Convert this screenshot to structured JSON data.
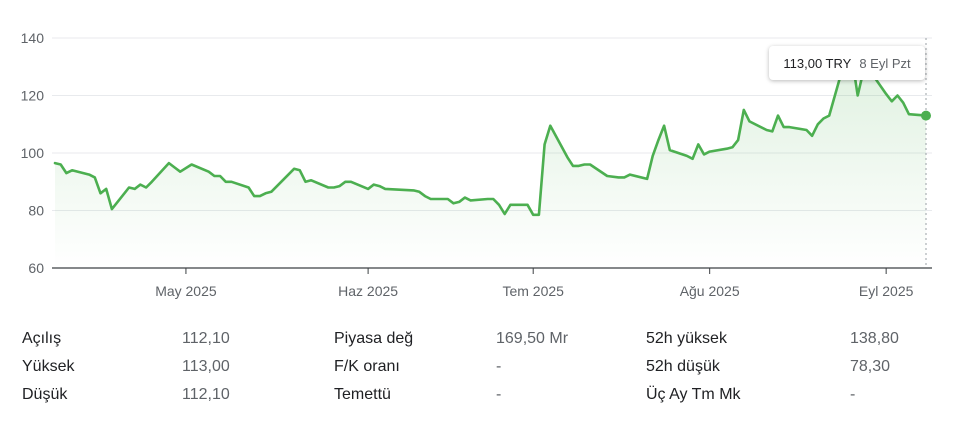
{
  "chart_data": {
    "type": "area",
    "ylim": [
      60,
      140
    ],
    "y_ticks": [
      60,
      80,
      100,
      120,
      140
    ],
    "x_tick_labels": [
      "May 2025",
      "Haz 2025",
      "Tem 2025",
      "Ağu 2025",
      "Eyl 2025"
    ],
    "x_tick_dates": [
      "2025-05-01",
      "2025-06-02",
      "2025-07-01",
      "2025-08-01",
      "2025-09-01"
    ],
    "grid": true,
    "line_color": "#4caf50",
    "fill_color": "#e8f5e9",
    "series": [
      {
        "x": [
          "2025-04-08",
          "2025-04-09",
          "2025-04-10",
          "2025-04-11",
          "2025-04-14",
          "2025-04-15",
          "2025-04-16",
          "2025-04-17",
          "2025-04-18",
          "2025-04-21",
          "2025-04-22",
          "2025-04-23",
          "2025-04-24",
          "2025-04-25",
          "2025-04-28",
          "2025-04-29",
          "2025-04-30",
          "2025-05-02",
          "2025-05-05",
          "2025-05-06",
          "2025-05-07",
          "2025-05-08",
          "2025-05-09",
          "2025-05-12",
          "2025-05-13",
          "2025-05-14",
          "2025-05-15",
          "2025-05-16",
          "2025-05-20",
          "2025-05-21",
          "2025-05-22",
          "2025-05-23",
          "2025-05-26",
          "2025-05-27",
          "2025-05-28",
          "2025-05-29",
          "2025-05-30",
          "2025-06-02",
          "2025-06-03",
          "2025-06-04",
          "2025-06-05",
          "2025-06-10",
          "2025-06-11",
          "2025-06-12",
          "2025-06-13",
          "2025-06-16",
          "2025-06-17",
          "2025-06-18",
          "2025-06-19",
          "2025-06-20",
          "2025-06-23",
          "2025-06-24",
          "2025-06-25",
          "2025-06-26",
          "2025-06-27",
          "2025-06-30",
          "2025-07-01",
          "2025-07-02",
          "2025-07-03",
          "2025-07-04",
          "2025-07-07",
          "2025-07-08",
          "2025-07-09",
          "2025-07-10",
          "2025-07-11",
          "2025-07-14",
          "2025-07-16",
          "2025-07-17",
          "2025-07-18",
          "2025-07-21",
          "2025-07-22",
          "2025-07-23",
          "2025-07-24",
          "2025-07-25",
          "2025-07-28",
          "2025-07-29",
          "2025-07-30",
          "2025-07-31",
          "2025-08-01",
          "2025-08-04",
          "2025-08-05",
          "2025-08-06",
          "2025-08-07",
          "2025-08-08",
          "2025-08-11",
          "2025-08-12",
          "2025-08-13",
          "2025-08-14",
          "2025-08-15",
          "2025-08-18",
          "2025-08-19",
          "2025-08-20",
          "2025-08-21",
          "2025-08-22",
          "2025-08-25",
          "2025-08-26",
          "2025-08-27",
          "2025-08-28",
          "2025-08-29",
          "2025-09-01",
          "2025-09-02",
          "2025-09-03",
          "2025-09-04",
          "2025-09-05",
          "2025-09-08"
        ],
        "values": [
          96.5,
          96,
          93,
          94,
          92.5,
          91.5,
          86,
          87.5,
          80.5,
          88,
          87.5,
          89,
          88,
          90,
          96.5,
          95,
          93.5,
          96,
          93.5,
          92,
          92,
          90,
          90,
          88,
          85,
          85,
          86,
          86.5,
          94.5,
          94,
          90,
          90.5,
          88,
          88,
          88.5,
          90,
          90,
          87.5,
          89,
          88.5,
          87.5,
          87,
          86.5,
          85,
          84,
          84,
          82.5,
          83,
          84.5,
          83.5,
          84,
          84,
          82,
          78.8,
          82,
          82,
          78.5,
          78.5,
          103,
          109.5,
          98.5,
          95.5,
          95.5,
          96,
          96,
          92,
          91.5,
          91.5,
          92.5,
          91,
          99,
          104.5,
          109.5,
          101,
          99,
          98,
          103,
          99.5,
          100.5,
          101.5,
          102,
          104.5,
          115,
          111,
          108,
          107.5,
          113,
          109,
          109,
          108,
          106,
          110,
          112,
          113,
          134,
          133,
          120,
          128.5,
          129,
          120.5,
          118,
          120,
          117.5,
          113.5,
          113
        ]
      }
    ],
    "tooltip": {
      "price": "113,00 TRY",
      "date": "8 Eyl Pzt"
    }
  },
  "stats": {
    "rows": [
      [
        {
          "label": "Açılış",
          "value": "112,10"
        },
        {
          "label": "Piyasa değ",
          "value": "169,50 Mr"
        },
        {
          "label": "52h yüksek",
          "value": "138,80"
        }
      ],
      [
        {
          "label": "Yüksek",
          "value": "113,00"
        },
        {
          "label": "F/K oranı",
          "value": "-"
        },
        {
          "label": "52h düşük",
          "value": "78,30"
        }
      ],
      [
        {
          "label": "Düşük",
          "value": "112,10"
        },
        {
          "label": "Temettü",
          "value": "-"
        },
        {
          "label": "Üç Ay Tm Mk",
          "value": "-"
        }
      ]
    ]
  }
}
